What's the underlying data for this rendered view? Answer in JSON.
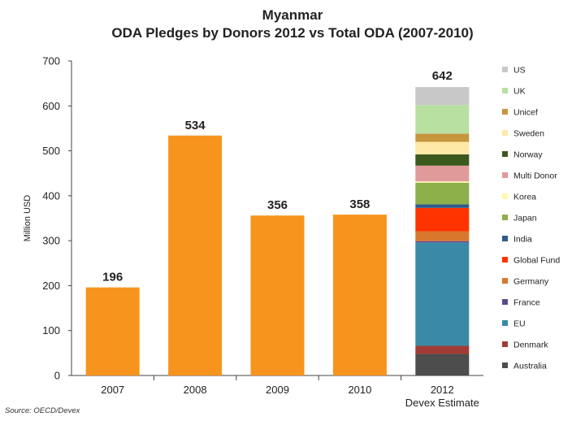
{
  "chart_data": {
    "type": "bar",
    "title": "Myanmar",
    "subtitle": "ODA Pledges by Donors 2012 vs Total ODA (2007-2010)",
    "ylabel": "Million USD",
    "ylim": [
      0,
      700
    ],
    "yticks": [
      0,
      100,
      200,
      300,
      400,
      500,
      600,
      700
    ],
    "grid": false,
    "legend_position": "right",
    "bar_color": "#F7941D",
    "bars": [
      {
        "category": "2007",
        "value": 196,
        "label": "196"
      },
      {
        "category": "2008",
        "value": 534,
        "label": "534"
      },
      {
        "category": "2009",
        "value": 356,
        "label": "356"
      },
      {
        "category": "2010",
        "value": 358,
        "label": "358"
      }
    ],
    "stacked_bar": {
      "category_lines": [
        "2012",
        "Devex Estimate"
      ],
      "total": 642,
      "total_label": "642",
      "segments": [
        {
          "name": "Australia",
          "value": 48,
          "color": "#4D4D4D"
        },
        {
          "name": "Denmark",
          "value": 18,
          "color": "#A23B35"
        },
        {
          "name": "EU",
          "value": 230,
          "color": "#3A8AA6"
        },
        {
          "name": "France",
          "value": 3,
          "color": "#5B4A8B"
        },
        {
          "name": "Germany",
          "value": 22,
          "color": "#D9782D"
        },
        {
          "name": "Global Fund",
          "value": 52,
          "color": "#FF3300"
        },
        {
          "name": "India",
          "value": 8,
          "color": "#2E5C8A"
        },
        {
          "name": "Japan",
          "value": 48,
          "color": "#8DB04A"
        },
        {
          "name": "Korea",
          "value": 3,
          "color": "#FFF7B0"
        },
        {
          "name": "Multi Donor",
          "value": 35,
          "color": "#E19A9A"
        },
        {
          "name": "Norway",
          "value": 25,
          "color": "#3C5A1E"
        },
        {
          "name": "Sweden",
          "value": 28,
          "color": "#FDE9A5"
        },
        {
          "name": "Unicef",
          "value": 18,
          "color": "#C8963E"
        },
        {
          "name": "UK",
          "value": 64,
          "color": "#B8E0A0"
        },
        {
          "name": "US",
          "value": 40,
          "color": "#C8C8C8"
        }
      ]
    },
    "legend_order": [
      "US",
      "UK",
      "Unicef",
      "Sweden",
      "Norway",
      "Multi Donor",
      "Korea",
      "Japan",
      "India",
      "Global Fund",
      "Germany",
      "France",
      "EU",
      "Denmark",
      "Australia"
    ]
  },
  "source": "Source: OECD/Devex"
}
